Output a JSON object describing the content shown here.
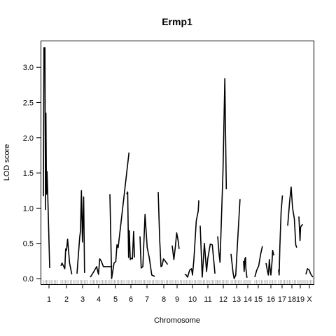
{
  "chart_data": {
    "type": "line",
    "title": "Ermp1",
    "xlabel": "Chromosome",
    "ylabel": "LOD score",
    "ylim": [
      -0.08,
      3.38
    ],
    "yticks": [
      0.0,
      0.5,
      1.0,
      1.5,
      2.0,
      2.5,
      3.0
    ],
    "ytick_labels": [
      "0.0",
      "0.5",
      "1.0",
      "1.5",
      "2.0",
      "2.5",
      "3.0"
    ],
    "grid": false,
    "legend": "none",
    "line_color": "#000000",
    "chromosomes": [
      {
        "label": "1",
        "points": [
          [
            0.0,
            1.17
          ],
          [
            0.04,
            3.28
          ],
          [
            0.11,
            3.28
          ],
          [
            0.15,
            0.98
          ],
          [
            0.18,
            2.35
          ],
          [
            0.22,
            1.2
          ],
          [
            0.26,
            1.52
          ],
          [
            0.3,
            1.27
          ],
          [
            0.45,
            0.15
          ]
        ]
      },
      {
        "label": "2",
        "points": [
          [
            0.0,
            0.18
          ],
          [
            0.08,
            0.22
          ],
          [
            0.28,
            0.14
          ],
          [
            0.34,
            0.42
          ],
          [
            0.4,
            0.4
          ],
          [
            0.48,
            0.56
          ],
          [
            0.62,
            0.22
          ],
          [
            0.78,
            0.06
          ]
        ]
      },
      {
        "label": "3",
        "points": [
          [
            0.0,
            0.07
          ],
          [
            0.25,
            0.58
          ],
          [
            0.33,
            0.68
          ],
          [
            0.42,
            1.25
          ],
          [
            0.52,
            0.52
          ],
          [
            0.63,
            1.16
          ],
          [
            0.72,
            0.08
          ]
        ]
      },
      {
        "label": "4",
        "points": [
          [
            0.0,
            0.02
          ],
          [
            0.15,
            0.08
          ],
          [
            0.35,
            0.17
          ],
          [
            0.45,
            0.06
          ],
          [
            0.52,
            0.28
          ],
          [
            0.6,
            0.25
          ],
          [
            0.72,
            0.17
          ],
          [
            1.2,
            0.17
          ]
        ]
      },
      {
        "label": "5",
        "points": [
          [
            0.0,
            1.2
          ],
          [
            0.12,
            0.0
          ],
          [
            0.28,
            0.22
          ],
          [
            0.4,
            0.24
          ],
          [
            0.48,
            0.48
          ],
          [
            0.56,
            0.44
          ],
          [
            1.3,
            1.79
          ]
        ]
      },
      {
        "label": "6",
        "points": [
          [
            0.0,
            1.2
          ],
          [
            0.08,
            1.23
          ],
          [
            0.16,
            0.3
          ],
          [
            0.22,
            0.68
          ],
          [
            0.3,
            0.27
          ],
          [
            0.4,
            0.29
          ],
          [
            0.48,
            0.28
          ],
          [
            0.58,
            0.67
          ],
          [
            0.66,
            0.3
          ]
        ]
      },
      {
        "label": "7",
        "points": [
          [
            0.0,
            0.6
          ],
          [
            0.07,
            0.15
          ],
          [
            0.17,
            0.17
          ],
          [
            0.3,
            0.91
          ],
          [
            0.43,
            0.44
          ],
          [
            0.55,
            0.3
          ],
          [
            0.7,
            0.05
          ],
          [
            0.88,
            0.03
          ]
        ]
      },
      {
        "label": "8",
        "points": [
          [
            0.0,
            1.23
          ],
          [
            0.12,
            0.54
          ],
          [
            0.22,
            0.17
          ],
          [
            0.3,
            0.18
          ],
          [
            0.42,
            0.28
          ],
          [
            0.55,
            0.25
          ],
          [
            0.75,
            0.2
          ]
        ]
      },
      {
        "label": "9",
        "points": [
          [
            0.0,
            0.47
          ],
          [
            0.15,
            0.27
          ],
          [
            0.28,
            0.45
          ],
          [
            0.4,
            0.65
          ],
          [
            0.52,
            0.55
          ],
          [
            0.62,
            0.42
          ]
        ]
      },
      {
        "label": "10",
        "points": [
          [
            0.0,
            0.06
          ],
          [
            0.1,
            0.05
          ],
          [
            0.2,
            0.02
          ],
          [
            0.35,
            0.12
          ],
          [
            0.48,
            0.14
          ],
          [
            0.55,
            0.05
          ],
          [
            0.65,
            0.27
          ],
          [
            0.82,
            0.82
          ],
          [
            0.96,
            0.96
          ],
          [
            1.0,
            1.11
          ]
        ]
      },
      {
        "label": "11",
        "points": [
          [
            0.0,
            0.75
          ],
          [
            0.12,
            0.02
          ],
          [
            0.25,
            0.5
          ],
          [
            0.38,
            0.1
          ],
          [
            0.45,
            0.28
          ],
          [
            0.6,
            0.49
          ],
          [
            0.72,
            0.48
          ],
          [
            0.88,
            0.07
          ]
        ]
      },
      {
        "label": "12",
        "points": [
          [
            0.0,
            0.6
          ],
          [
            0.12,
            0.37
          ],
          [
            0.22,
            0.23
          ],
          [
            0.5,
            1.5
          ],
          [
            0.68,
            2.84
          ],
          [
            0.82,
            1.27
          ]
        ]
      },
      {
        "label": "13",
        "points": [
          [
            0.0,
            0.35
          ],
          [
            0.2,
            0.08
          ],
          [
            0.3,
            0.0
          ],
          [
            0.45,
            0.05
          ],
          [
            0.6,
            0.45
          ],
          [
            0.86,
            1.13
          ]
        ]
      },
      {
        "label": "14",
        "points": [
          [
            0.0,
            0.25
          ],
          [
            0.08,
            0.1
          ],
          [
            0.18,
            0.28
          ],
          [
            0.28,
            0.3
          ],
          [
            0.32,
            0.15
          ],
          [
            0.48,
            0.01
          ]
        ]
      },
      {
        "label": "15",
        "points": [
          [
            0.0,
            0.02
          ],
          [
            0.2,
            0.12
          ],
          [
            0.4,
            0.18
          ],
          [
            0.6,
            0.35
          ],
          [
            0.78,
            0.46
          ]
        ]
      },
      {
        "label": "16",
        "points": [
          [
            0.0,
            0.22
          ],
          [
            0.16,
            0.1
          ],
          [
            0.24,
            0.05
          ],
          [
            0.34,
            0.27
          ],
          [
            0.42,
            0.13
          ],
          [
            0.5,
            0.05
          ],
          [
            0.62,
            0.25
          ],
          [
            0.68,
            0.4
          ],
          [
            0.8,
            0.33
          ]
        ]
      },
      {
        "label": "17",
        "points": [
          [
            0.0,
            0.13
          ],
          [
            0.06,
            0.05
          ],
          [
            0.14,
            0.45
          ],
          [
            0.28,
            0.95
          ],
          [
            0.42,
            1.18
          ]
        ]
      },
      {
        "label": "18",
        "points": [
          [
            0.0,
            0.75
          ],
          [
            0.2,
            1.1
          ],
          [
            0.35,
            1.3
          ],
          [
            0.5,
            1.0
          ],
          [
            0.68,
            0.85
          ],
          [
            0.82,
            0.48
          ],
          [
            0.92,
            0.44
          ]
        ]
      },
      {
        "label": "19",
        "points": [
          [
            0.0,
            0.88
          ],
          [
            0.2,
            0.54
          ],
          [
            0.3,
            0.73
          ],
          [
            0.45,
            0.75
          ],
          [
            0.7,
            0.77
          ]
        ]
      },
      {
        "label": "X",
        "points": [
          [
            0.0,
            0.06
          ],
          [
            0.2,
            0.14
          ],
          [
            0.45,
            0.12
          ],
          [
            0.6,
            0.07
          ],
          [
            0.9,
            0.02
          ]
        ]
      }
    ]
  }
}
